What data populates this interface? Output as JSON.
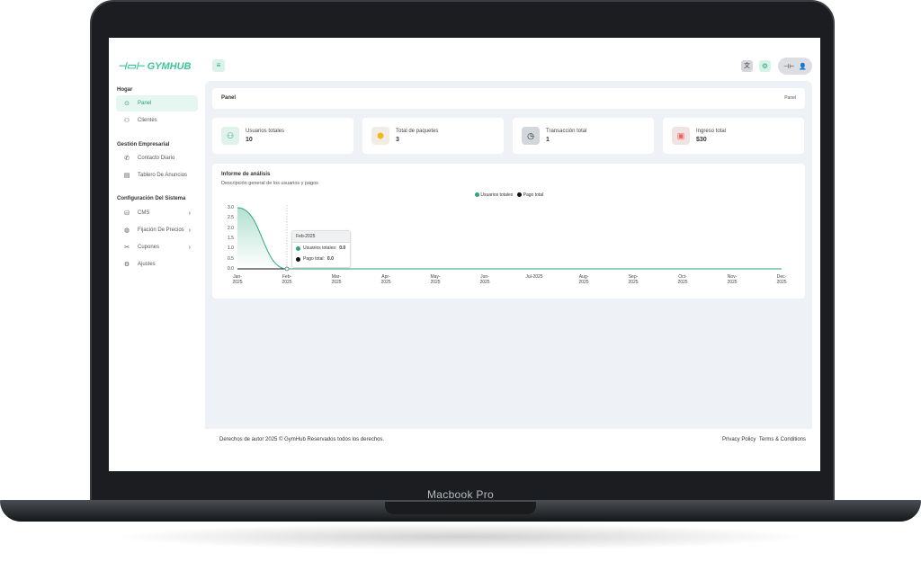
{
  "device": {
    "label": "Macbook Pro"
  },
  "app": {
    "logo": "GYMHUB",
    "menu_icon": "menu-icon"
  },
  "topbar": {
    "icons": [
      "translate-icon",
      "settings-icon",
      "dumbbell-icon",
      "user-icon"
    ]
  },
  "sidebar": {
    "sections": [
      {
        "title": "Hogar",
        "items": [
          {
            "label": "Panel",
            "icon": "dashboard-icon",
            "active": true
          },
          {
            "label": "Clientes",
            "icon": "user-plus-icon"
          }
        ]
      },
      {
        "title": "Gestión Empresarial",
        "items": [
          {
            "label": "Contacto Diario",
            "icon": "phone-icon"
          },
          {
            "label": "Tablero De Anuncios",
            "icon": "board-icon"
          }
        ]
      },
      {
        "title": "Configuración Del Sistema",
        "items": [
          {
            "label": "CMS",
            "icon": "database-icon",
            "submenu": true
          },
          {
            "label": "Fijación De Precios",
            "icon": "price-icon",
            "submenu": true
          },
          {
            "label": "Cupones",
            "icon": "coupon-icon",
            "submenu": true
          },
          {
            "label": "Ajustes",
            "icon": "gear-icon"
          }
        ]
      }
    ]
  },
  "header": {
    "title": "Panel",
    "breadcrumb": "Panel"
  },
  "stats": [
    {
      "label": "Usuarios totales",
      "value": "10",
      "icon": "users-icon",
      "color": "#2a9d7a",
      "bg": "#dff3ec"
    },
    {
      "label": "Total de paquetes",
      "value": "3",
      "icon": "package-icon",
      "color": "#f2b81c",
      "bg": "#f1ede4"
    },
    {
      "label": "Transacción total",
      "value": "1",
      "icon": "history-icon",
      "color": "#222",
      "bg": "#d3d6da"
    },
    {
      "label": "Ingreso total",
      "value": "$30",
      "icon": "wallet-icon",
      "color": "#f0655a",
      "bg": "#efe3e3"
    }
  ],
  "analytics": {
    "title": "Informe de análisis",
    "subtitle": "Descripción general de los usuarios y pagos"
  },
  "chart_data": {
    "type": "area",
    "categories": [
      "Jan-2025",
      "Feb-2025",
      "Mar-2025",
      "Apr-2025",
      "May-2025",
      "Jun-2025",
      "Jul-2025",
      "Aug-2025",
      "Sep-2025",
      "Oct-2025",
      "Nov-2025",
      "Dec-2025"
    ],
    "series": [
      {
        "name": "Usuarios totales",
        "color": "#2aa57f",
        "values": [
          3,
          0,
          0,
          0,
          0,
          0,
          0,
          0,
          0,
          0,
          0,
          0
        ]
      },
      {
        "name": "Pago total",
        "color": "#111111",
        "values": [
          0,
          0,
          0,
          0,
          0,
          0,
          0,
          0,
          0,
          0,
          0,
          0
        ]
      }
    ],
    "yticks": [
      "0.0",
      "0.5",
      "1.0",
      "1.5",
      "2.0",
      "2.5",
      "3.0"
    ],
    "ylim": [
      0,
      3
    ],
    "legend": "top-center",
    "tooltip": {
      "title": "Feb-2025",
      "rows": [
        {
          "label": "Usuarios totales:",
          "value": "0.0"
        },
        {
          "label": "Pago total:",
          "value": "0.0"
        }
      ]
    }
  },
  "footer": {
    "copyright": "Derechos de autor 2025 © GymHub Reservados todos los derechos.",
    "links": [
      "Privacy Policy",
      "Terms & Conditions"
    ]
  }
}
